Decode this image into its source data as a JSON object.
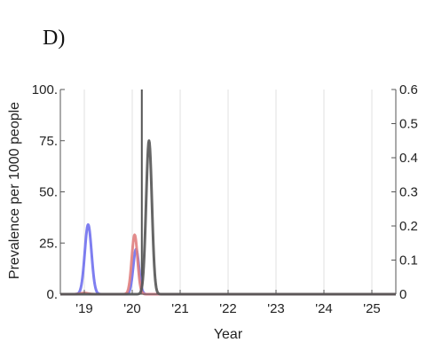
{
  "panel_label": "D)",
  "chart_data": {
    "type": "line",
    "xlabel": "Year",
    "ylabel": "Prevalence per 1000 people",
    "x_range": [
      2018.5,
      2025.5
    ],
    "x_ticks": [
      {
        "value": 2019,
        "label": "'19"
      },
      {
        "value": 2020,
        "label": "'20"
      },
      {
        "value": 2021,
        "label": "'21"
      },
      {
        "value": 2022,
        "label": "'22"
      },
      {
        "value": 2023,
        "label": "'23"
      },
      {
        "value": 2024,
        "label": "'24"
      },
      {
        "value": 2025,
        "label": "'25"
      }
    ],
    "y_left": {
      "range": [
        0,
        100
      ],
      "ticks": [
        0,
        25,
        50,
        75,
        100
      ],
      "tick_labels": [
        "0.",
        "25.",
        "50.",
        "75.",
        "100."
      ]
    },
    "y_right": {
      "range": [
        0,
        0.6
      ],
      "ticks": [
        0,
        0.1,
        0.2,
        0.3,
        0.4,
        0.5,
        0.6
      ],
      "tick_labels": [
        "0",
        "0.1",
        "0.2",
        "0.3",
        "0.4",
        "0.5",
        "0.6"
      ]
    },
    "grid": {
      "x": true,
      "y": false
    },
    "series": [
      {
        "color": "#7070ee",
        "axis": "left",
        "peaks": [
          {
            "t": 2019.08,
            "h": 34,
            "sd": 0.07
          },
          {
            "t": 2020.08,
            "h": 22,
            "sd": 0.06
          }
        ]
      },
      {
        "color": "#e08080",
        "axis": "left",
        "peaks": [
          {
            "t": 2020.05,
            "h": 29,
            "sd": 0.06
          },
          {
            "t": 2019.0,
            "h": 0.6,
            "sd": 0.08
          }
        ]
      },
      {
        "color": "#555555",
        "axis": "right",
        "peaks": [
          {
            "t": 2020.35,
            "h": 0.45,
            "sd": 0.06
          }
        ]
      }
    ],
    "reference_line": {
      "x": 2020.2,
      "color": "#555555"
    }
  }
}
